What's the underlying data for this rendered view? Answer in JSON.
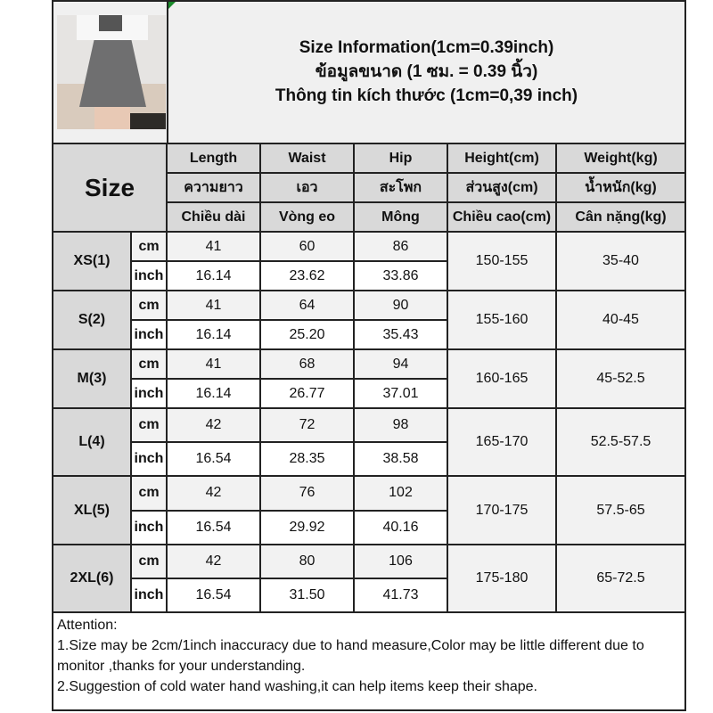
{
  "title": {
    "en": "Size Information(1cm=0.39inch)",
    "th": "ข้อมูลขนาด (1 ซม. = 0.39 นิ้ว)",
    "vi": "Thông tin kích thước (1cm=0,39 inch)"
  },
  "header": {
    "size_label": "Size",
    "columns": [
      {
        "en": "Length",
        "th": "ความยาว",
        "vi": "Chiều dài"
      },
      {
        "en": "Waist",
        "th": "เอว",
        "vi": "Vòng eo"
      },
      {
        "en": "Hip",
        "th": "สะโพก",
        "vi": "Mông"
      },
      {
        "en": "Height(cm)",
        "th": "ส่วนสูง(cm)",
        "vi": "Chiều cao(cm)"
      },
      {
        "en": "Weight(kg)",
        "th": "น้ำหนัก(kg)",
        "vi": "Cân nặng(kg)"
      }
    ]
  },
  "units": {
    "cm": "cm",
    "inch": "inch"
  },
  "rows": [
    {
      "size": "XS(1)",
      "cm": [
        "41",
        "60",
        "86"
      ],
      "inch": [
        "16.14",
        "23.62",
        "33.86"
      ],
      "height": "150-155",
      "weight": "35-40"
    },
    {
      "size": "S(2)",
      "cm": [
        "41",
        "64",
        "90"
      ],
      "inch": [
        "16.14",
        "25.20",
        "35.43"
      ],
      "height": "155-160",
      "weight": "40-45"
    },
    {
      "size": "M(3)",
      "cm": [
        "41",
        "68",
        "94"
      ],
      "inch": [
        "16.14",
        "26.77",
        "37.01"
      ],
      "height": "160-165",
      "weight": "45-52.5"
    },
    {
      "size": "L(4)",
      "cm": [
        "42",
        "72",
        "98"
      ],
      "inch": [
        "16.54",
        "28.35",
        "38.58"
      ],
      "height": "165-170",
      "weight": "52.5-57.5"
    },
    {
      "size": "XL(5)",
      "cm": [
        "42",
        "76",
        "102"
      ],
      "inch": [
        "16.54",
        "29.92",
        "40.16"
      ],
      "height": "170-175",
      "weight": "57.5-65"
    },
    {
      "size": "2XL(6)",
      "cm": [
        "42",
        "80",
        "106"
      ],
      "inch": [
        "16.54",
        "31.50",
        "41.73"
      ],
      "height": "175-180",
      "weight": "65-72.5"
    }
  ],
  "attention": {
    "heading": "Attention:",
    "line1": "1.Size may be 2cm/1inch inaccuracy due to hand measure,Color may be little different due to monitor ,thanks for your understanding.",
    "line2": "2.Suggestion of cold water hand washing,it can help items keep their shape."
  }
}
